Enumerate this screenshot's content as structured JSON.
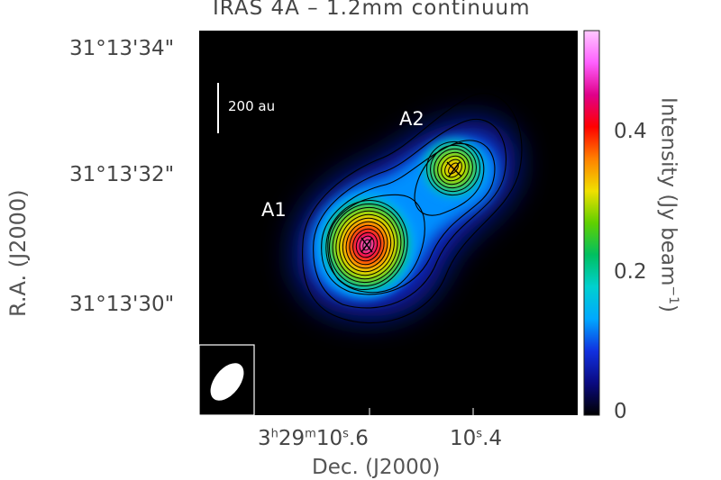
{
  "chart_data": {
    "type": "heatmap",
    "title": "IRAS 4A – 1.2mm continuum",
    "xlabel": "Dec. (J2000)",
    "ylabel": "R.A. (J2000)",
    "x_ticks": [
      {
        "label_main": "3",
        "sup1": "h",
        "mid": "29",
        "sup2": "m",
        "tail": "10.6",
        "sup3": "s",
        "value": "3h29m10.6s"
      },
      {
        "label_main": "10",
        "sup3": "s",
        "tail": ".4",
        "value": "10.4s"
      }
    ],
    "y_ticks": [
      "31°13'34\"",
      "31°13'32\"",
      "31°13'30\""
    ],
    "colorbar": {
      "label": "Intensity (Jy beam",
      "label_sup": "−1",
      "label_end": ")",
      "ticks": [
        "0",
        "0.2",
        "0.4"
      ],
      "range": [
        0,
        0.55
      ],
      "colormap": "spectral-rainbow",
      "colors": [
        "#000000",
        "#0a0a80",
        "#1030e0",
        "#00a8ff",
        "#00d0d0",
        "#00c060",
        "#60d000",
        "#f0e000",
        "#ff8000",
        "#ff0000",
        "#e0008a",
        "#ff60ff",
        "#ffc8ff"
      ]
    },
    "sources": [
      {
        "name": "A1",
        "peak_intensity": 0.53,
        "note": "primary continuum peak, marked with cross"
      },
      {
        "name": "A2",
        "peak_intensity": 0.37,
        "note": "secondary continuum peak, marked with cross"
      }
    ],
    "scale_bar": {
      "label": "200 au"
    },
    "beam": {
      "shape": "ellipse",
      "color": "#ffffff"
    },
    "contours": {
      "color": "#000000",
      "count_around_A1": 12,
      "count_around_A2": 7
    }
  }
}
